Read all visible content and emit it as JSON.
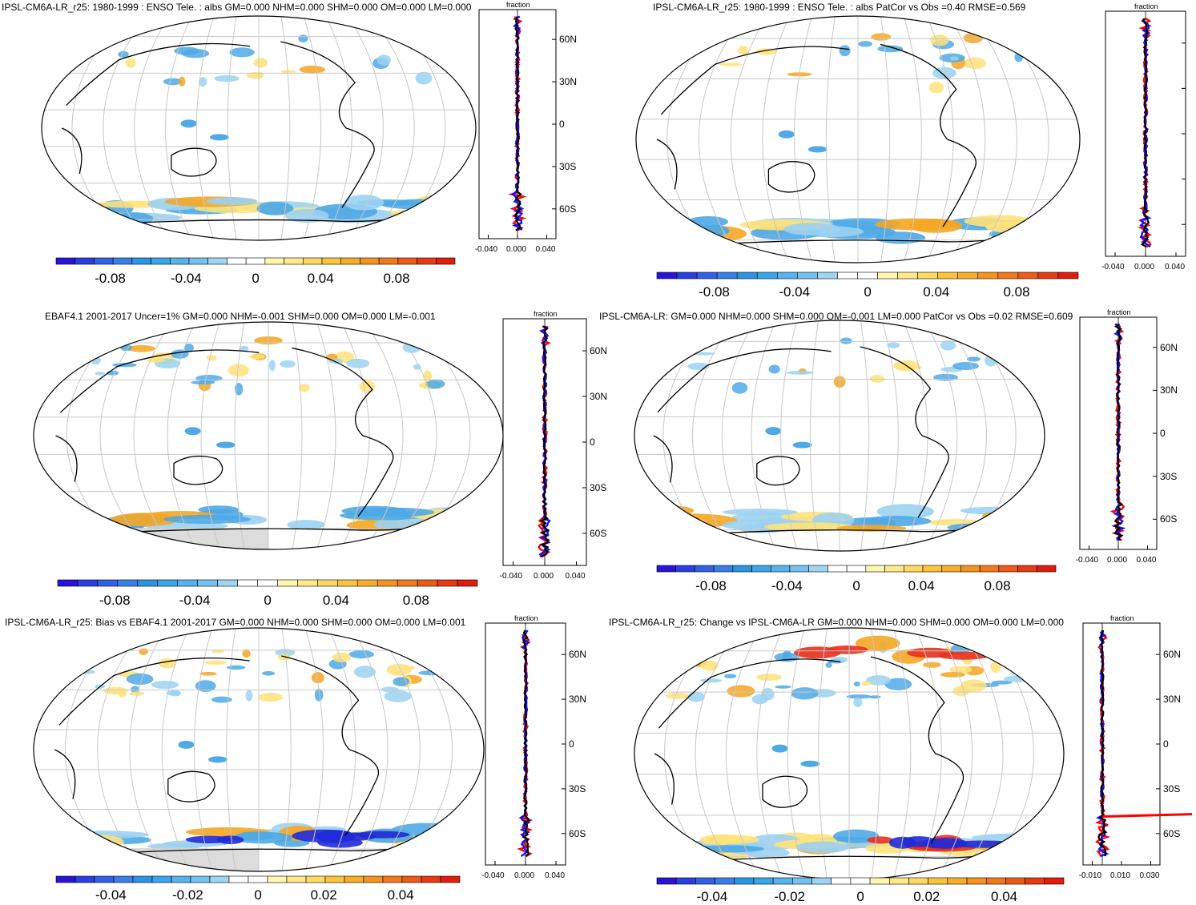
{
  "colors": {
    "land": "#dcdcdc",
    "coast": "#000000",
    "grid": "#c8c8c8",
    "blue": "#4ea9e6",
    "lightblue": "#9bd2f2",
    "yellow": "#ffe27a",
    "orange": "#f5a623",
    "red": "#e8301e",
    "darkblue": "#1f2ad8",
    "profile_red": "#ff0000",
    "profile_blue": "#1010ff",
    "profile_black": "#000000"
  },
  "colorbar_colors": [
    "#2a13d8",
    "#2a3fe0",
    "#3261e6",
    "#3a7fe8",
    "#2b95e3",
    "#3aa6ea",
    "#56b3ee",
    "#73c2f2",
    "#9fd4f3",
    "#ffffff",
    "#ffffff",
    "#fff7b0",
    "#ffe98a",
    "#ffd960",
    "#fbc43a",
    "#f7ad29",
    "#f59320",
    "#f2781b",
    "#ee5a17",
    "#e63a13",
    "#e01c0f"
  ],
  "panels": [
    {
      "title": "IPSL-CM6A-LR_r25: 1980-1999 : ENSO Tele. : albs GM=0.000 NHM=0.000 SHM=0.000 OM=0.000 LM=0.000",
      "colorbar_labels": [
        "-0.08",
        "-0.04",
        "0",
        "0.04",
        "0.08"
      ],
      "profile_title": "fraction",
      "lat_labels": [
        "60N",
        "30N",
        "0",
        "30S",
        "60S"
      ],
      "profile_xticks": [
        "-0.040",
        "0.000",
        "0.040"
      ],
      "land_mask": false
    },
    {
      "title": "IPSL-CM6A-LR_r25: 1980-1999 : ENSO Tele. : albs PatCor vs Obs =0.40 RMSE=0.569",
      "colorbar_labels": [
        "-0.08",
        "-0.04",
        "0",
        "0.04",
        "0.08"
      ],
      "profile_title": "fraction",
      "lat_labels": [
        "",
        "",
        "",
        "",
        ""
      ],
      "profile_xticks": [
        "-0.040",
        "0.000",
        "0.040"
      ],
      "land_mask": false
    },
    {
      "title": "EBAF4.1 2001-2017 Uncer=1% GM=0.000 NHM=-0.001 SHM=0.000 OM=0.000 LM=-0.001",
      "colorbar_labels": [
        "-0.08",
        "-0.04",
        "0",
        "0.04",
        "0.08"
      ],
      "profile_title": "fraction",
      "lat_labels": [
        "60N",
        "30N",
        "0",
        "30S",
        "60S"
      ],
      "profile_xticks": [
        "-0.040",
        "0.000",
        "0.040"
      ],
      "land_mask": true
    },
    {
      "title": "IPSL-CM6A-LR: GM=0.000 NHM=0.000 SHM=0.000 OM=-0.001 LM=0.000 PatCor vs Obs =0.02 RMSE=0.609",
      "colorbar_labels": [
        "-0.08",
        "-0.04",
        "0",
        "0.04",
        "0.08"
      ],
      "profile_title": "fraction",
      "lat_labels": [
        "60N",
        "30N",
        "0",
        "30S",
        "60S"
      ],
      "profile_xticks": [
        "-0.040",
        "0.000",
        "0.040"
      ],
      "land_mask": false
    },
    {
      "title": "IPSL-CM6A-LR_r25: Bias vs EBAF4.1 2001-2017 GM=0.000 NHM=0.000 SHM=0.000 OM=0.000 LM=0.001",
      "colorbar_labels": [
        "-0.04",
        "-0.02",
        "0",
        "0.02",
        "0.04"
      ],
      "profile_title": "fraction",
      "lat_labels": [
        "60N",
        "30N",
        "0",
        "30S",
        "60S"
      ],
      "profile_xticks": [
        "-0.040",
        "0.000",
        "0.040"
      ],
      "land_mask": true
    },
    {
      "title": "IPSL-CM6A-LR_r25: Change vs IPSL-CM6A-LR GM=0.000 NHM=0.000 SHM=0.000 OM=0.000 LM=0.000",
      "colorbar_labels": [
        "-0.04",
        "-0.02",
        "0",
        "0.02",
        "0.04"
      ],
      "profile_title": "fraction",
      "lat_labels": [
        "60N",
        "30N",
        "0",
        "30S",
        "60S"
      ],
      "profile_xticks": [
        "-0.010",
        "0.010",
        "0.030"
      ],
      "land_mask": false
    }
  ]
}
